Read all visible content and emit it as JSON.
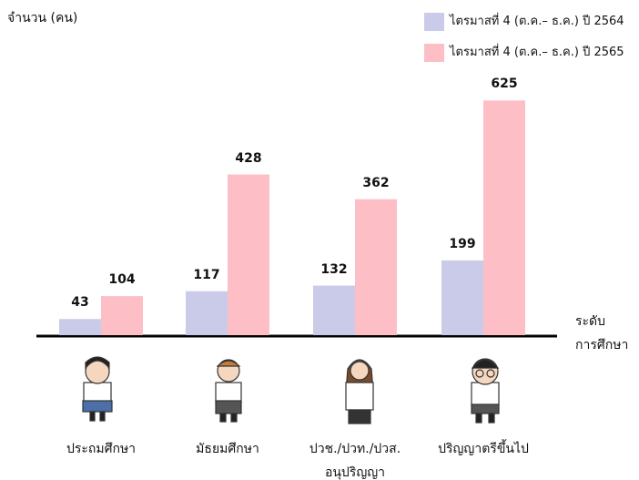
{
  "chart_data": {
    "type": "bar",
    "y_label": "จำนวน (คน)",
    "x_label": "ระดับ\nการศึกษา",
    "categories": [
      "ประถมศึกษา",
      "มัธยมศึกษา",
      "ปวช./ปวท./ปวส.\nอนุปริญญา",
      "ปริญญาตรีขึ้นไป"
    ],
    "series": [
      {
        "name": "ไตรมาสที่ 4 (ต.ค.– ธ.ค.) ปี 2564",
        "color": "#c9cbe8",
        "values": [
          43,
          117,
          132,
          199
        ]
      },
      {
        "name": "ไตรมาสที่ 4 (ต.ค.– ธ.ค.) ปี 2565",
        "color": "#fdbfc5",
        "values": [
          104,
          428,
          362,
          625
        ]
      }
    ],
    "ylim": [
      0,
      650
    ]
  }
}
